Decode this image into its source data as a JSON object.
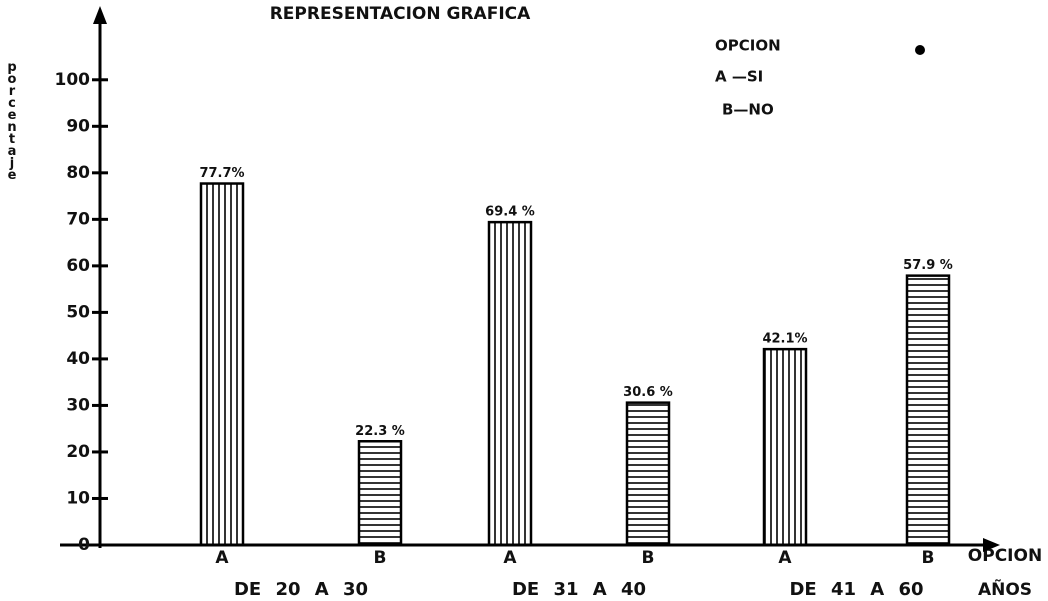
{
  "chart_data": {
    "type": "bar",
    "title": "REPRESENTACION GRAFICA",
    "y_label": "porcentaje",
    "x_label": "OPCION",
    "group_label": "AÑOS",
    "legend": {
      "title": "OPCION",
      "entries": [
        "A —SI",
        "B—NO"
      ]
    },
    "categories": [
      "DE 20 A 30",
      "DE 31 A 40",
      "DE 41 A 60"
    ],
    "series": [
      {
        "name": "A",
        "color": "#000000",
        "pattern": "vertical",
        "values": [
          77.7,
          69.4,
          42.1
        ],
        "value_labels": [
          "77.7%",
          "69.4 %",
          "42.1%"
        ]
      },
      {
        "name": "B",
        "color": "#000000",
        "pattern": "horizontal",
        "values": [
          22.3,
          30.6,
          57.9
        ],
        "value_labels": [
          "22.3 %",
          "30.6 %",
          "57.9 %"
        ]
      }
    ],
    "ylim": [
      0,
      115
    ],
    "yticks": [
      0,
      10,
      20,
      30,
      40,
      50,
      60,
      70,
      80,
      90,
      100
    ]
  }
}
